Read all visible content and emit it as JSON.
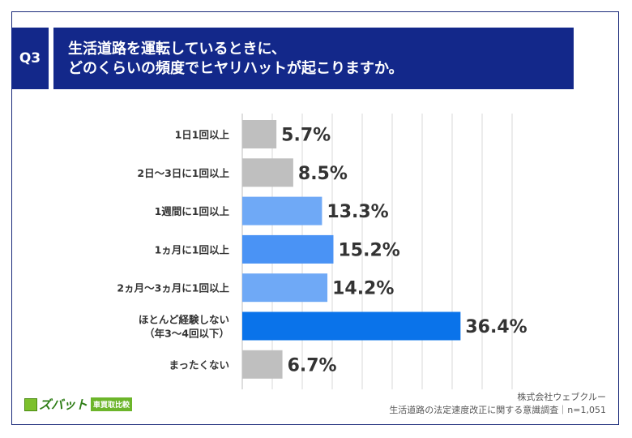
{
  "header": {
    "badge": "Q3",
    "title_line1": "生活道路を運転しているときに、",
    "title_line2": "どのくらいの頻度でヒヤリハットが起こりますか。"
  },
  "chart_data": {
    "type": "bar",
    "orientation": "horizontal",
    "grid": true,
    "xlim": [
      0,
      45
    ],
    "categories": [
      [
        "1日1回以上"
      ],
      [
        "2日〜3日に1回以上"
      ],
      [
        "1週間に1回以上"
      ],
      [
        "1ヵ月に1回以上"
      ],
      [
        "2ヵ月〜3ヵ月に1回以上"
      ],
      [
        "ほとんど経験しない",
        "（年3〜4回以下）"
      ],
      [
        "まったくない"
      ]
    ],
    "values": [
      5.7,
      8.5,
      13.3,
      15.2,
      14.2,
      36.4,
      6.7
    ],
    "data_labels": [
      "5.7%",
      "8.5%",
      "13.3%",
      "15.2%",
      "14.2%",
      "36.4%",
      "6.7%"
    ],
    "colors": [
      "#bfbfbf",
      "#bfbfbf",
      "#6fa9f6",
      "#4a93f5",
      "#6fa9f6",
      "#0a73ea",
      "#bfbfbf"
    ]
  },
  "footer": {
    "source_line1": "株式会社ウェブクルー",
    "source_line2": "生活道路の法定速度改正に関する意識調査｜n=1,051",
    "logo_text": "ズバット",
    "logo_tag": "車買取比較"
  }
}
